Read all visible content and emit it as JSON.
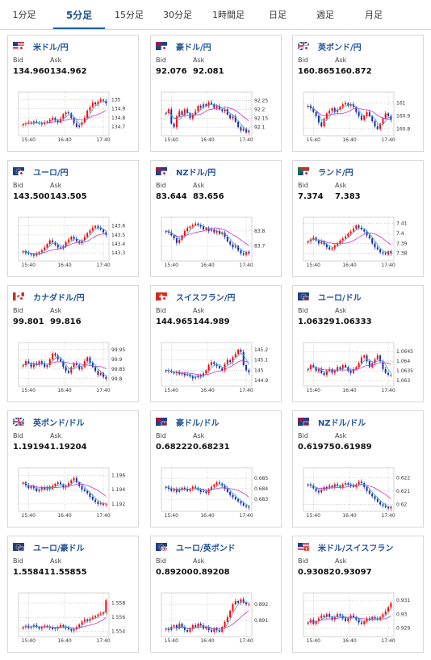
{
  "tabs": [
    "1分足",
    "5分足",
    "15分足",
    "30分足",
    "1時間足",
    "日足",
    "週足",
    "月足"
  ],
  "active_tab": 1,
  "labels": {
    "bid": "Bid",
    "ask": "Ask"
  },
  "colors": {
    "up": "#ff0000",
    "down": "#1a2fa8",
    "ma_slow": "#cc33cc",
    "ma_fast": "#33aacc",
    "title": "#23539a"
  },
  "cards": [
    {
      "title": "米ドル/円",
      "flag": "us-jp-flag",
      "bid": "134.960",
      "ask": "134.962",
      "chart_data": {
        "type": "candlestick",
        "x_ticks": [
          "15:40",
          "16:40",
          "17:40"
        ],
        "y_ticks": [
          "135",
          "134.9",
          "134.8",
          "134.7"
        ],
        "ylim": [
          134.62,
          135.05
        ],
        "close": [
          134.73,
          134.74,
          134.75,
          134.74,
          134.76,
          134.75,
          134.74,
          134.73,
          134.75,
          134.76,
          134.78,
          134.8,
          134.77,
          134.75,
          134.79,
          134.84,
          134.86,
          134.85,
          134.8,
          134.74,
          134.7,
          134.72,
          134.75,
          134.8,
          134.88,
          134.92,
          134.97,
          134.95,
          134.98,
          135.0,
          134.99,
          134.96
        ]
      }
    },
    {
      "title": "豪ドル/円",
      "flag": "au-jp-flag",
      "bid": "92.076",
      "ask": "92.081",
      "chart_data": {
        "type": "candlestick",
        "x_ticks": [
          "15:40",
          "16:40",
          "17:40"
        ],
        "y_ticks": [
          "92.25",
          "92.2",
          "92.15",
          "92.1"
        ],
        "ylim": [
          92.06,
          92.28
        ],
        "close": [
          92.18,
          92.2,
          92.12,
          92.1,
          92.16,
          92.19,
          92.17,
          92.2,
          92.18,
          92.15,
          92.17,
          92.19,
          92.22,
          92.21,
          92.23,
          92.22,
          92.24,
          92.23,
          92.21,
          92.22,
          92.2,
          92.19,
          92.2,
          92.17,
          92.15,
          92.16,
          92.13,
          92.1,
          92.08,
          92.09,
          92.07,
          92.08
        ]
      }
    },
    {
      "title": "英ポンド/円",
      "flag": "gb-jp-flag",
      "bid": "160.865",
      "ask": "160.872",
      "chart_data": {
        "type": "candlestick",
        "x_ticks": [
          "15:40",
          "16:40",
          "17:40"
        ],
        "y_ticks": [
          "161",
          "160.9",
          "160.8"
        ],
        "ylim": [
          160.76,
          161.06
        ],
        "close": [
          160.98,
          160.96,
          160.93,
          160.9,
          160.85,
          160.82,
          160.88,
          160.92,
          160.94,
          160.96,
          160.93,
          160.95,
          160.97,
          160.99,
          161.0,
          160.98,
          160.99,
          160.97,
          160.93,
          160.9,
          160.87,
          160.9,
          160.93,
          160.9,
          160.86,
          160.82,
          160.8,
          160.84,
          160.88,
          160.92,
          160.9,
          160.87
        ]
      }
    },
    {
      "title": "ユーロ/円",
      "flag": "eu-jp-flag",
      "bid": "143.500",
      "ask": "143.505",
      "chart_data": {
        "type": "candlestick",
        "x_ticks": [
          "15:40",
          "16:40",
          "17:40"
        ],
        "y_ticks": [
          "143.6",
          "143.5",
          "143.4",
          "143.3"
        ],
        "ylim": [
          143.23,
          143.66
        ],
        "close": [
          143.32,
          143.3,
          143.29,
          143.28,
          143.27,
          143.29,
          143.31,
          143.33,
          143.36,
          143.4,
          143.44,
          143.42,
          143.39,
          143.36,
          143.35,
          143.38,
          143.42,
          143.45,
          143.48,
          143.46,
          143.43,
          143.41,
          143.44,
          143.48,
          143.52,
          143.55,
          143.58,
          143.6,
          143.58,
          143.56,
          143.53,
          143.5
        ]
      }
    },
    {
      "title": "NZドル/円",
      "flag": "nz-jp-flag",
      "bid": "83.644",
      "ask": "83.656",
      "chart_data": {
        "type": "candlestick",
        "x_ticks": [
          "15:40",
          "16:40",
          "17:40"
        ],
        "y_ticks": [
          "83.8",
          "83.7"
        ],
        "ylim": [
          83.61,
          83.87
        ],
        "close": [
          83.8,
          83.79,
          83.77,
          83.75,
          83.72,
          83.74,
          83.77,
          83.8,
          83.82,
          83.83,
          83.84,
          83.85,
          83.84,
          83.83,
          83.81,
          83.82,
          83.8,
          83.81,
          83.79,
          83.8,
          83.78,
          83.79,
          83.76,
          83.73,
          83.71,
          83.69,
          83.7,
          83.67,
          83.65,
          83.64,
          83.66,
          83.65
        ]
      }
    },
    {
      "title": "ランド/円",
      "flag": "za-jp-flag",
      "bid": "7.374",
      "ask": "7.383",
      "chart_data": {
        "type": "candlestick",
        "x_ticks": [
          "15:40",
          "16:40",
          "17:40"
        ],
        "y_ticks": [
          "7.41",
          "7.4",
          "7.39",
          "7.38"
        ],
        "ylim": [
          7.374,
          7.413
        ],
        "close": [
          7.392,
          7.394,
          7.396,
          7.393,
          7.39,
          7.392,
          7.389,
          7.386,
          7.384,
          7.385,
          7.388,
          7.39,
          7.393,
          7.395,
          7.397,
          7.4,
          7.402,
          7.405,
          7.408,
          7.406,
          7.404,
          7.402,
          7.398,
          7.395,
          7.39,
          7.386,
          7.384,
          7.381,
          7.38,
          7.379,
          7.382,
          7.38
        ]
      }
    },
    {
      "title": "カナダドル/円",
      "flag": "ca-jp-flag",
      "bid": "99.801",
      "ask": "99.816",
      "chart_data": {
        "type": "candlestick",
        "x_ticks": [
          "15:40",
          "16:40",
          "17:40"
        ],
        "y_ticks": [
          "99.95",
          "99.9",
          "99.85",
          "99.8"
        ],
        "ylim": [
          99.77,
          99.97
        ],
        "close": [
          99.87,
          99.89,
          99.88,
          99.86,
          99.88,
          99.87,
          99.89,
          99.88,
          99.86,
          99.87,
          99.9,
          99.93,
          99.92,
          99.9,
          99.89,
          99.86,
          99.84,
          99.83,
          99.86,
          99.88,
          99.87,
          99.85,
          99.86,
          99.89,
          99.91,
          99.88,
          99.86,
          99.84,
          99.82,
          99.83,
          99.81,
          99.8
        ]
      }
    },
    {
      "title": "スイスフラン/円",
      "flag": "ch-jp-flag",
      "bid": "144.965",
      "ask": "144.989",
      "chart_data": {
        "type": "candlestick",
        "x_ticks": [
          "15:40",
          "16:40",
          "17:40"
        ],
        "y_ticks": [
          "145.2",
          "145.1",
          "145",
          "144.9"
        ],
        "ylim": [
          144.86,
          145.24
        ],
        "close": [
          145.0,
          144.99,
          144.98,
          144.97,
          144.98,
          144.96,
          144.97,
          144.95,
          144.96,
          144.94,
          144.92,
          144.93,
          144.95,
          144.94,
          144.97,
          145.0,
          145.05,
          145.08,
          145.06,
          145.04,
          145.02,
          145.0,
          145.06,
          145.1,
          145.08,
          145.13,
          145.16,
          145.2,
          145.18,
          145.05,
          145.0,
          144.98
        ]
      }
    },
    {
      "title": "ユーロ/ドル",
      "flag": "eu-us-flag",
      "bid": "1.06329",
      "ask": "1.06333",
      "chart_data": {
        "type": "candlestick",
        "x_ticks": [
          "15:40",
          "16:40",
          "17:40"
        ],
        "y_ticks": [
          "1.0645",
          "1.064",
          "1.0635",
          "1.063"
        ],
        "ylim": [
          1.0628,
          1.0648
        ],
        "close": [
          1.0636,
          1.0638,
          1.0637,
          1.0635,
          1.0636,
          1.0634,
          1.0633,
          1.0635,
          1.0636,
          1.0634,
          1.0635,
          1.0637,
          1.0636,
          1.0638,
          1.0637,
          1.0635,
          1.0634,
          1.0636,
          1.0637,
          1.0639,
          1.0642,
          1.0643,
          1.064,
          1.0637,
          1.0639,
          1.0641,
          1.0643,
          1.064,
          1.0636,
          1.0634,
          1.0633,
          1.0633
        ]
      }
    },
    {
      "title": "英ポンド/ドル",
      "flag": "gb-us-flag",
      "bid": "1.19194",
      "ask": "1.19204",
      "chart_data": {
        "type": "candlestick",
        "x_ticks": [
          "15:40",
          "16:40",
          "17:40"
        ],
        "y_ticks": [
          "1.196",
          "1.194",
          "1.192"
        ],
        "ylim": [
          1.1912,
          1.1966
        ],
        "close": [
          1.195,
          1.1946,
          1.1942,
          1.1945,
          1.1942,
          1.1938,
          1.194,
          1.1943,
          1.194,
          1.1944,
          1.1941,
          1.1945,
          1.1948,
          1.195,
          1.1947,
          1.1943,
          1.1945,
          1.1949,
          1.1953,
          1.1956,
          1.195,
          1.1945,
          1.194,
          1.1938,
          1.1935,
          1.193,
          1.1926,
          1.1923,
          1.192,
          1.1921,
          1.1919,
          1.192
        ]
      }
    },
    {
      "title": "豪ドル/ドル",
      "flag": "au-us-flag",
      "bid": "0.68222",
      "ask": "0.68231",
      "chart_data": {
        "type": "candlestick",
        "x_ticks": [
          "15:40",
          "16:40",
          "17:40"
        ],
        "y_ticks": [
          "0.685",
          "0.684",
          "0.683"
        ],
        "ylim": [
          0.682,
          0.6857
        ],
        "close": [
          0.6842,
          0.684,
          0.6838,
          0.684,
          0.6837,
          0.6839,
          0.6841,
          0.684,
          0.6838,
          0.684,
          0.6842,
          0.6841,
          0.6839,
          0.6837,
          0.6838,
          0.6836,
          0.6839,
          0.6842,
          0.6844,
          0.6846,
          0.6845,
          0.6843,
          0.684,
          0.6837,
          0.6834,
          0.6832,
          0.683,
          0.6828,
          0.6826,
          0.6824,
          0.6823,
          0.6822
        ]
      }
    },
    {
      "title": "NZドル/ドル",
      "flag": "nz-us-flag",
      "bid": "0.61975",
      "ask": "0.61989",
      "chart_data": {
        "type": "candlestick",
        "x_ticks": [
          "15:40",
          "16:40",
          "17:40"
        ],
        "y_ticks": [
          "0.622",
          "0.621",
          "0.62"
        ],
        "ylim": [
          0.6196,
          0.6225
        ],
        "close": [
          0.6215,
          0.6214,
          0.6212,
          0.621,
          0.6209,
          0.6211,
          0.6213,
          0.6212,
          0.6214,
          0.6213,
          0.6215,
          0.6214,
          0.6213,
          0.6215,
          0.6216,
          0.6215,
          0.6214,
          0.6213,
          0.6215,
          0.6217,
          0.6216,
          0.6213,
          0.621,
          0.6208,
          0.6206,
          0.6204,
          0.6202,
          0.62,
          0.6199,
          0.6198,
          0.6197,
          0.6198
        ]
      }
    },
    {
      "title": "ユーロ/豪ドル",
      "flag": "eu-au-flag",
      "bid": "1.55841",
      "ask": "1.55855",
      "chart_data": {
        "type": "candlestick",
        "x_ticks": [
          "15:40",
          "16:40",
          "17:40"
        ],
        "y_ticks": [
          "1.558",
          "1.556",
          "1.554"
        ],
        "ylim": [
          1.5535,
          1.559
        ],
        "close": [
          1.5546,
          1.5548,
          1.5545,
          1.5547,
          1.5549,
          1.5546,
          1.5544,
          1.5546,
          1.5548,
          1.5547,
          1.5545,
          1.5543,
          1.5544,
          1.5546,
          1.5549,
          1.5547,
          1.5545,
          1.5543,
          1.5541,
          1.5543,
          1.5546,
          1.555,
          1.5554,
          1.5557,
          1.5555,
          1.5558,
          1.556,
          1.5562,
          1.5564,
          1.5565,
          1.5567,
          1.5584
        ]
      }
    },
    {
      "title": "ユーロ/英ポンド",
      "flag": "eu-gb-flag",
      "bid": "0.89200",
      "ask": "0.89208",
      "chart_data": {
        "type": "candlestick",
        "x_ticks": [
          "15:40",
          "16:40",
          "17:40"
        ],
        "y_ticks": [
          "0.892",
          "0.891"
        ],
        "ylim": [
          0.8901,
          0.8925
        ],
        "close": [
          0.8905,
          0.8904,
          0.8906,
          0.8907,
          0.8905,
          0.8908,
          0.8906,
          0.8904,
          0.8903,
          0.8905,
          0.8907,
          0.8906,
          0.8908,
          0.8907,
          0.8905,
          0.8906,
          0.8904,
          0.8903,
          0.8905,
          0.8904,
          0.8903,
          0.8906,
          0.8909,
          0.8912,
          0.8916,
          0.892,
          0.8922,
          0.8921,
          0.8923,
          0.8921,
          0.892,
          0.892
        ]
      }
    },
    {
      "title": "米ドル/スイスフラン",
      "flag": "us-ch-flag",
      "bid": "0.93082",
      "ask": "0.93097",
      "chart_data": {
        "type": "candlestick",
        "x_ticks": [
          "15:40",
          "16:40",
          "17:40"
        ],
        "y_ticks": [
          "0.931",
          "0.93",
          "0.929"
        ],
        "ylim": [
          0.9285,
          0.9313
        ],
        "close": [
          0.9294,
          0.9296,
          0.9293,
          0.9295,
          0.9297,
          0.9299,
          0.9298,
          0.93,
          0.9298,
          0.9296,
          0.9298,
          0.93,
          0.9299,
          0.9297,
          0.9295,
          0.9297,
          0.9299,
          0.9298,
          0.9296,
          0.9294,
          0.9293,
          0.9295,
          0.9297,
          0.9296,
          0.9298,
          0.9297,
          0.9296,
          0.9298,
          0.93,
          0.9302,
          0.9305,
          0.9308
        ]
      }
    }
  ]
}
